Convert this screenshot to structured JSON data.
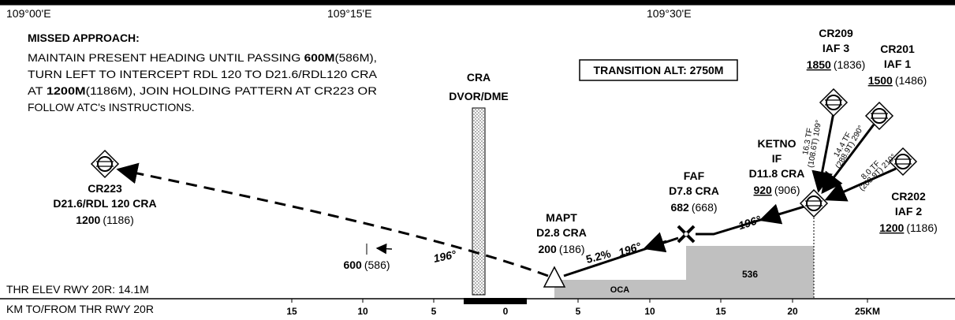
{
  "longitudes": [
    "109°00'E",
    "109°15'E",
    "109°30'E"
  ],
  "missed_approach": {
    "title": "MISSED APPROACH:",
    "lines": [
      [
        {
          "text": "MAINTAIN PRESENT HEADING UNTIL PASSING "
        },
        {
          "text": "600M",
          "bold": true
        },
        {
          "text": "(586M),"
        }
      ],
      [
        {
          "text": "TURN LEFT TO INTERCEPT RDL 120 TO D21.6/RDL120 CRA"
        }
      ],
      [
        {
          "text": "AT "
        },
        {
          "text": "1200M",
          "bold": true
        },
        {
          "text": "(1186M), JOIN HOLDING PATTERN AT CR223 OR"
        }
      ],
      [
        {
          "text": "FOLLOW ATC's INSTRUCTIONS."
        }
      ]
    ]
  },
  "transition_alt": "TRANSITION ALT: 2750M",
  "navaid": {
    "name": "CRA",
    "type": "DVOR/DME"
  },
  "fixes": [
    {
      "lines": [
        "CR223",
        "D21.6/RDL 120 CRA"
      ],
      "altitude": "1200",
      "height": "(1186)"
    },
    {
      "lines": [
        "MAPT",
        "D2.8 CRA"
      ],
      "altitude": "200",
      "height": "(186)"
    },
    {
      "lines": [
        "FAF",
        "D7.8 CRA"
      ],
      "altitude": "682",
      "height": "(668)"
    },
    {
      "lines": [
        "KETNO",
        "IF",
        "D11.8 CRA"
      ],
      "altitude": "920",
      "height": "(906)",
      "underline": true
    },
    {
      "lines": [
        "CR209",
        "IAF 3"
      ],
      "altitude": "1850",
      "height": "(1836)",
      "underline": true
    },
    {
      "lines": [
        "CR201",
        "IAF 1"
      ],
      "altitude": "1500",
      "height": "(1486)",
      "underline": true
    },
    {
      "lines": [
        "CR202",
        "IAF 2"
      ],
      "altitude": "1200",
      "height": "(1186)",
      "underline": true
    }
  ],
  "stepdown": {
    "altitude": "600",
    "height": "(586)"
  },
  "tracks": [
    "196°",
    "196°",
    "196°"
  ],
  "gradient": "5.2%",
  "legs": [
    [
      "16.3 TF",
      "(108.6T) 109°"
    ],
    [
      "14.4 TF",
      "(288.9T) 290°"
    ],
    [
      "8.0 TF",
      "(208.9T) 210°"
    ]
  ],
  "oca": {
    "label": "OCA",
    "value": "536"
  },
  "thr_elev": "THR ELEV RWY 20R: 14.1M",
  "distance_scale": {
    "title": "KM TO/FROM THR RWY 20R",
    "labels": [
      "15",
      "10",
      "5",
      "0",
      "5",
      "10",
      "15",
      "20",
      "25KM"
    ]
  }
}
